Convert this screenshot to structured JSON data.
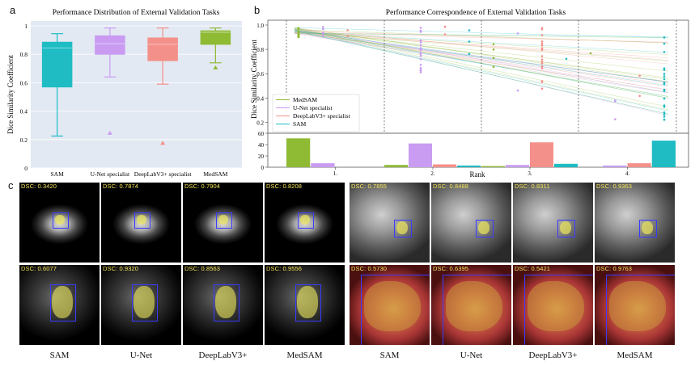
{
  "panel_labels": {
    "a": "a",
    "b": "b",
    "c": "c"
  },
  "chart_data": [
    {
      "type": "box",
      "title": "Performance Distribution of External Validation Tasks",
      "ylabel": "Dice Similarity Coefficient",
      "ylim": [
        0,
        1
      ],
      "yticks": [
        "0",
        "0.2",
        "0.4",
        "0.6",
        "0.8",
        "1"
      ],
      "categories": [
        "SAM",
        "U-Net specialist",
        "DeepLabV3+ specialist",
        "MedSAM"
      ],
      "colors": [
        "#1fbcc4",
        "#c99cf2",
        "#f4908a",
        "#8fba34"
      ],
      "boxes": [
        {
          "name": "SAM",
          "min": 0.225,
          "q1": 0.57,
          "median": 0.845,
          "q3": 0.885,
          "max": 0.945,
          "outliers": []
        },
        {
          "name": "U-Net specialist",
          "min": 0.64,
          "q1": 0.8,
          "median": 0.875,
          "q3": 0.93,
          "max": 0.985,
          "outliers": [
            0.245
          ]
        },
        {
          "name": "DeepLabV3+ specialist",
          "min": 0.59,
          "q1": 0.755,
          "median": 0.87,
          "q3": 0.915,
          "max": 0.985,
          "outliers": [
            0.175
          ]
        },
        {
          "name": "MedSAM",
          "min": 0.74,
          "q1": 0.87,
          "median": 0.955,
          "q3": 0.965,
          "max": 0.985,
          "outliers": [
            0.705
          ]
        }
      ]
    },
    {
      "type": "rank-correspondence",
      "title": "Performance Correspondence of External Validation Tasks",
      "ylabel": "Dice Similarity Coefficient",
      "xlabel": "Rank",
      "yticks": [
        "0.2",
        "0.4",
        "0.6",
        "0.8",
        "1.0"
      ],
      "ylim": [
        0.15,
        1.0
      ],
      "ranks": [
        "1.",
        "2.",
        "3.",
        "4."
      ],
      "legend": [
        "MedSAM",
        "U-Net specialist",
        "DeepLabV3+ specialist",
        "SAM"
      ],
      "colors": {
        "MedSAM": "#8fba34",
        "U-Net specialist": "#c99cf2",
        "DeepLabV3+ specialist": "#f4908a",
        "SAM": "#1fbcc4"
      },
      "rank_counts": {
        "ylim": [
          0,
          60
        ],
        "yticks": [
          "0",
          "20",
          "40",
          "60"
        ],
        "series": [
          {
            "name": "MedSAM",
            "values": [
              51,
              4,
              2,
              0
            ]
          },
          {
            "name": "U-Net specialist",
            "values": [
              7,
              42,
              4,
              3
            ]
          },
          {
            "name": "DeepLabV3+ specialist",
            "values": [
              0,
              5,
              44,
              7
            ]
          },
          {
            "name": "SAM",
            "values": [
              0,
              3,
              6,
              47
            ]
          }
        ]
      }
    }
  ],
  "panel_c": {
    "columns": [
      "SAM",
      "U-Net",
      "DeepLabV3+",
      "MedSAM",
      "SAM",
      "U-Net",
      "DeepLabV3+",
      "MedSAM"
    ],
    "rows": [
      [
        "DSC: 0.3420",
        "DSC: 0.7874",
        "DSC: 0.7904",
        "DSC: 0.8208",
        "DSC: 0.7855",
        "DSC: 0.8488",
        "DSC: 0.8311",
        "DSC: 0.9363"
      ],
      [
        "DSC: 0.6077",
        "DSC: 0.9320",
        "DSC: 0.8563",
        "DSC: 0.9556",
        "DSC: 0.5730",
        "DSC: 0.6395",
        "DSC: 0.5421",
        "DSC: 0.9763"
      ]
    ]
  }
}
